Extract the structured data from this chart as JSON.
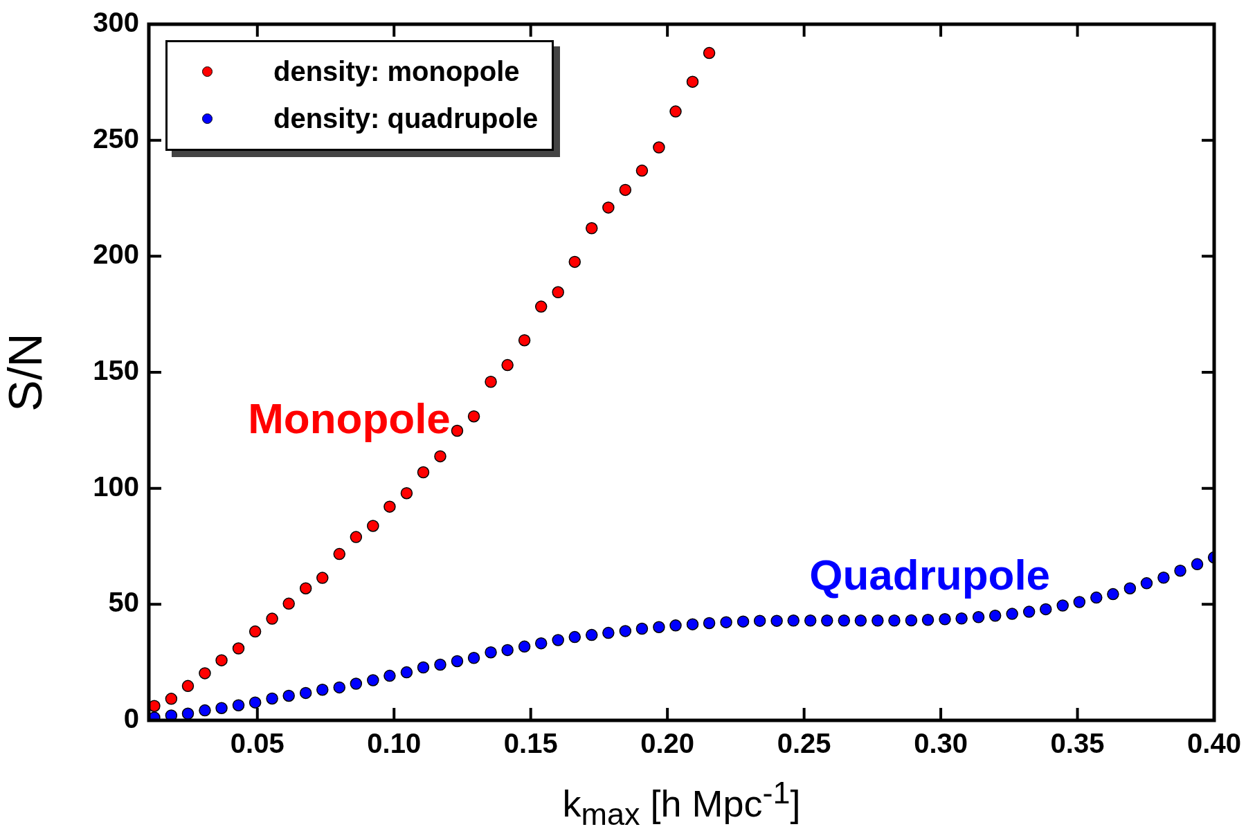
{
  "chart_data": {
    "type": "scatter",
    "xlabel": "k$_{max}$ [h Mpc$^{-1}$]",
    "ylabel": "S/N",
    "xlim": [
      0.0103,
      0.4
    ],
    "ylim": [
      0,
      300
    ],
    "xticks": [
      {
        "value": 0.05,
        "label": "0.05"
      },
      {
        "value": 0.1,
        "label": "0.10"
      },
      {
        "value": 0.15,
        "label": "0.15"
      },
      {
        "value": 0.2,
        "label": "0.20"
      },
      {
        "value": 0.25,
        "label": "0.25"
      },
      {
        "value": 0.3,
        "label": "0.30"
      },
      {
        "value": 0.35,
        "label": "0.35"
      },
      {
        "value": 0.4,
        "label": "0.40"
      }
    ],
    "yticks": [
      0,
      50,
      100,
      150,
      200,
      250,
      300
    ],
    "legend": "top left",
    "marker": "circle",
    "series": [
      {
        "name": "density: monopole",
        "color": "#ff0000",
        "x": [
          0.0123,
          0.0185,
          0.0246,
          0.0308,
          0.0369,
          0.0431,
          0.0492,
          0.0554,
          0.0615,
          0.0677,
          0.0738,
          0.08,
          0.0861,
          0.0923,
          0.0984,
          0.1046,
          0.1107,
          0.1169,
          0.1231,
          0.1292,
          0.1354,
          0.1415,
          0.1477,
          0.1538,
          0.16,
          0.1661,
          0.1723,
          0.1784,
          0.1846,
          0.1907,
          0.1969,
          0.203,
          0.2092,
          0.2153
        ],
        "values": [
          6.2,
          9.3,
          14.8,
          20.3,
          25.9,
          31,
          38.3,
          43.8,
          50.3,
          56.9,
          61.4,
          71.7,
          79,
          83.8,
          92.1,
          97.9,
          106.9,
          113.8,
          124.8,
          131,
          145.9,
          153.1,
          163.8,
          178.3,
          184.5,
          197.6,
          212.1,
          221,
          228.6,
          236.9,
          246.9,
          262.4,
          275.2,
          287.6
        ]
      },
      {
        "name": "density: quadrupole",
        "color": "#0000ff",
        "x": [
          0.0123,
          0.0185,
          0.0246,
          0.0308,
          0.0369,
          0.0431,
          0.0492,
          0.0554,
          0.0615,
          0.0677,
          0.0738,
          0.08,
          0.0861,
          0.0923,
          0.0984,
          0.1046,
          0.1107,
          0.1169,
          0.1231,
          0.1292,
          0.1354,
          0.1415,
          0.1477,
          0.1538,
          0.16,
          0.1661,
          0.1723,
          0.1784,
          0.1846,
          0.1907,
          0.1969,
          0.203,
          0.2092,
          0.2153,
          0.2215,
          0.2277,
          0.2338,
          0.24,
          0.2461,
          0.2523,
          0.2584,
          0.2646,
          0.2707,
          0.2769,
          0.283,
          0.2892,
          0.2953,
          0.3015,
          0.3076,
          0.3138,
          0.3199,
          0.3261,
          0.3323,
          0.3384,
          0.3446,
          0.3507,
          0.3569,
          0.363,
          0.3692,
          0.3753,
          0.3815,
          0.3876,
          0.3938,
          0.3999
        ],
        "values": [
          1.2,
          2.1,
          2.9,
          4.3,
          5.3,
          6.5,
          7.7,
          9.4,
          10.6,
          11.8,
          13.2,
          14.2,
          15.8,
          17.3,
          19.2,
          20.7,
          22.8,
          24.0,
          25.5,
          26.9,
          29.3,
          30.3,
          31.8,
          33.2,
          34.6,
          35.9,
          36.8,
          37.7,
          38.5,
          39.5,
          40.2,
          40.9,
          41.4,
          41.9,
          42.3,
          42.6,
          42.9,
          42.9,
          43.0,
          43.0,
          43.0,
          43.0,
          43.0,
          43.0,
          43.0,
          43.1,
          43.3,
          43.6,
          43.9,
          44.5,
          45.1,
          45.9,
          46.8,
          47.9,
          49.5,
          51.0,
          52.9,
          54.4,
          56.9,
          59.1,
          61.5,
          64.5,
          67.3,
          70.2
        ]
      }
    ],
    "annotations": [
      "Monopole",
      "Quadrupole"
    ]
  }
}
